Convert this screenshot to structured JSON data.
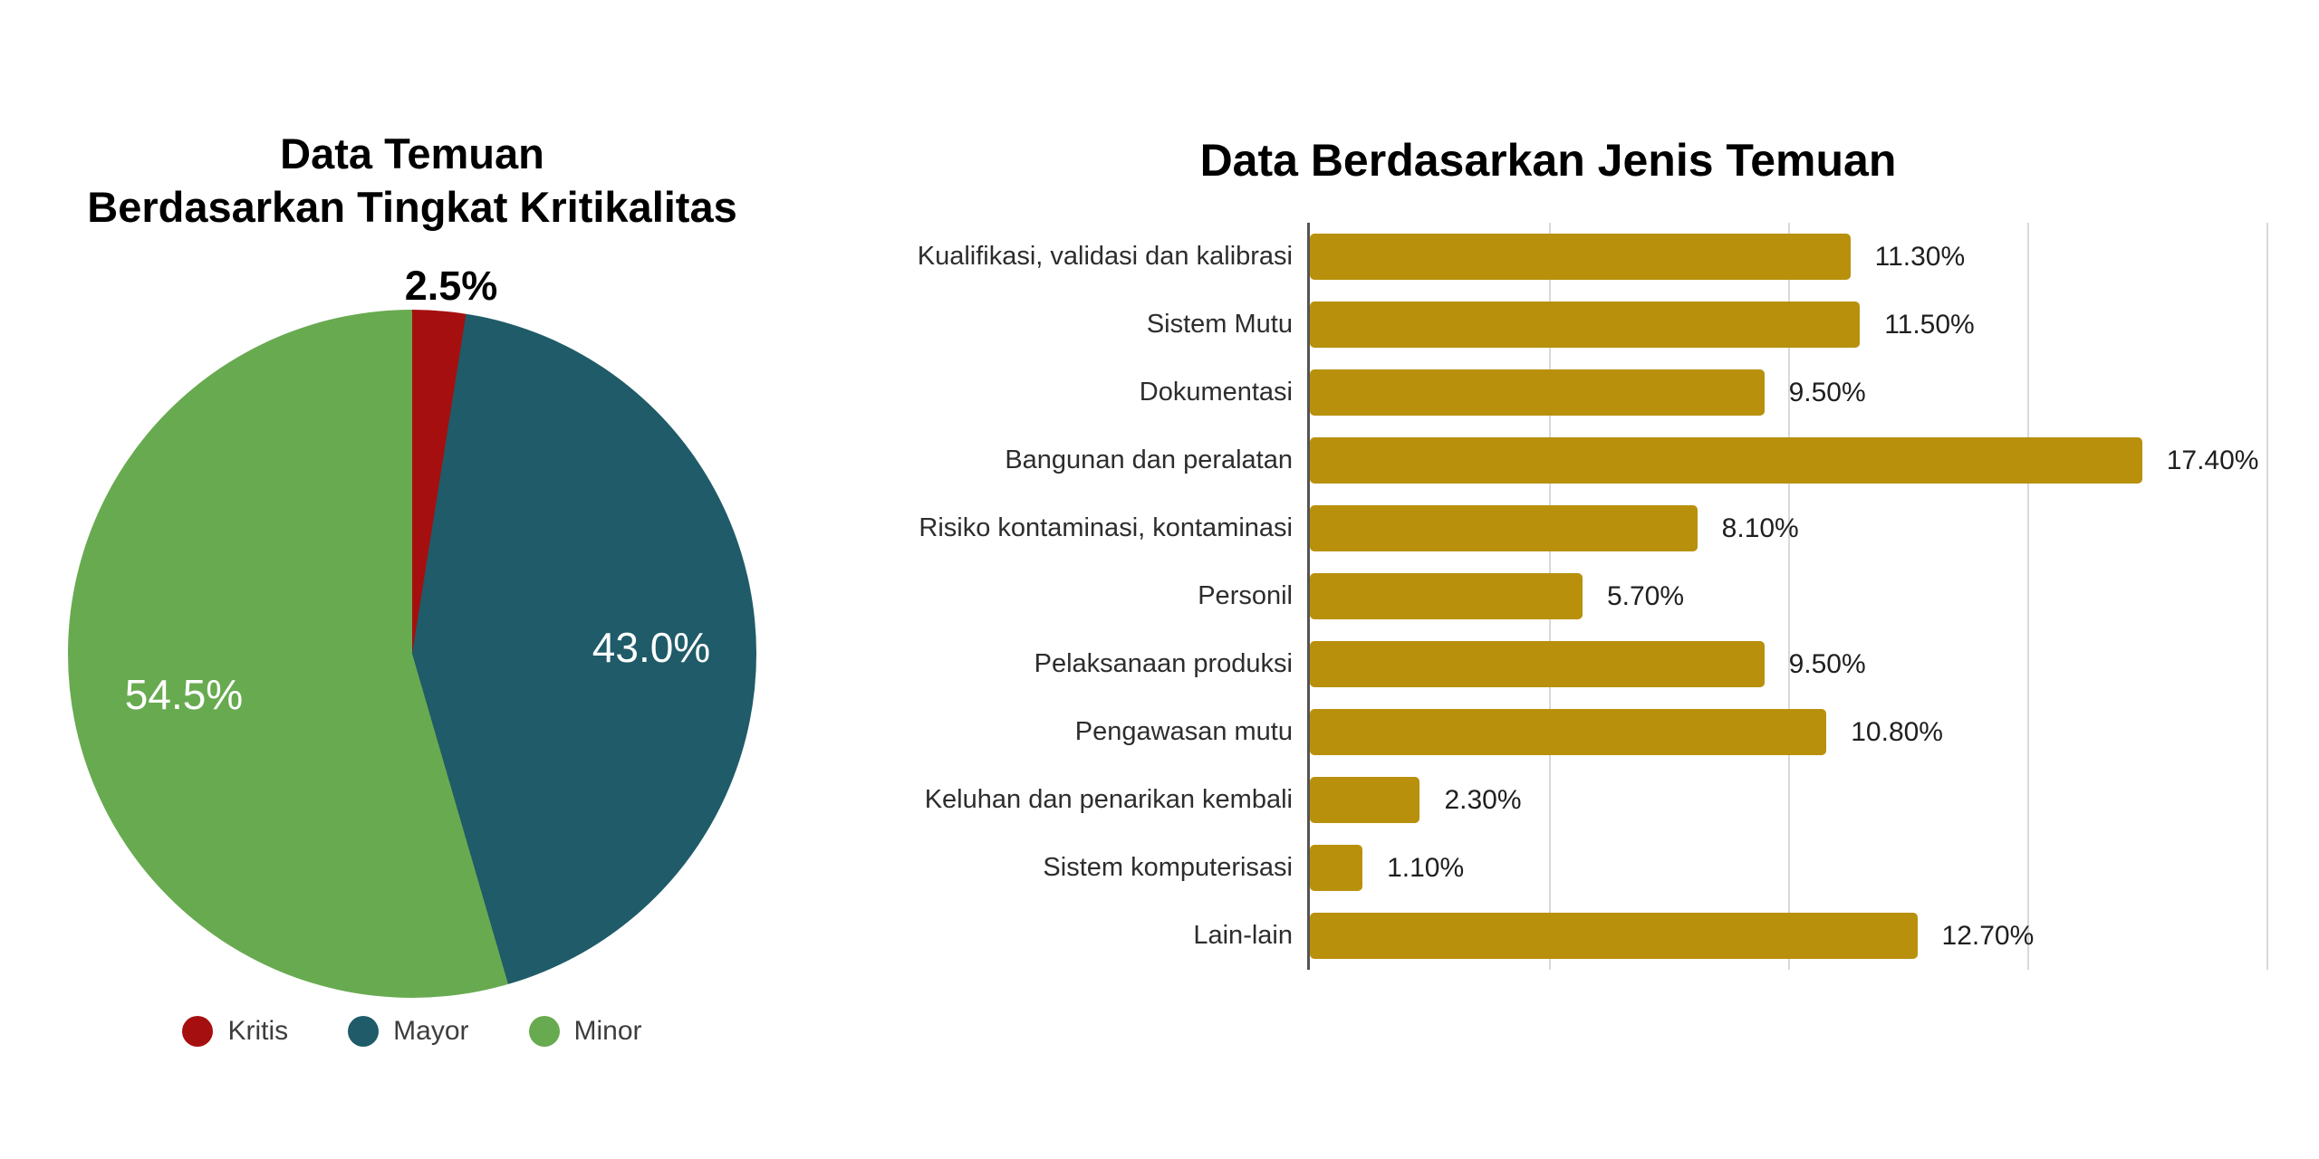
{
  "page": {
    "background_color": "#ffffff"
  },
  "chart_data": [
    {
      "type": "pie",
      "title_line1": "Data Temuan",
      "title_line2": "Berdasarkan Tingkat Kritikalitas",
      "legend_position": "bottom",
      "slices": [
        {
          "label": "Kritis",
          "value": 2.5,
          "display": "2.5%",
          "color": "#a60f0f",
          "label_placement": "outside-top",
          "label_color": "#000000"
        },
        {
          "label": "Mayor",
          "value": 43.0,
          "display": "43.0%",
          "color": "#1f5b68",
          "label_placement": "inside",
          "label_color": "#ffffff"
        },
        {
          "label": "Minor",
          "value": 54.5,
          "display": "54.5%",
          "color": "#68aa50",
          "label_placement": "inside",
          "label_color": "#ffffff"
        }
      ],
      "start_angle_deg": 0,
      "direction": "clockwise"
    },
    {
      "type": "bar",
      "orientation": "horizontal",
      "title": "Data Berdasarkan Jenis Temuan",
      "bar_color": "#b8900c",
      "axis": {
        "min": 0,
        "max": 20,
        "gridline_step": 5,
        "gridlines_visible": true,
        "tick_labels_visible": false
      },
      "xlabel": "",
      "ylabel": "",
      "bars": [
        {
          "category": "Kualifikasi, validasi dan kalibrasi",
          "value": 11.3,
          "display": "11.30%"
        },
        {
          "category": "Sistem Mutu",
          "value": 11.5,
          "display": "11.50%"
        },
        {
          "category": "Dokumentasi",
          "value": 9.5,
          "display": "9.50%"
        },
        {
          "category": "Bangunan dan peralatan",
          "value": 17.4,
          "display": "17.40%"
        },
        {
          "category": "Risiko kontaminasi, kontaminasi",
          "value": 8.1,
          "display": "8.10%"
        },
        {
          "category": "Personil",
          "value": 5.7,
          "display": "5.70%"
        },
        {
          "category": "Pelaksanaan produksi",
          "value": 9.5,
          "display": "9.50%"
        },
        {
          "category": "Pengawasan mutu",
          "value": 10.8,
          "display": "10.80%"
        },
        {
          "category": "Keluhan dan penarikan kembali",
          "value": 2.3,
          "display": "2.30%"
        },
        {
          "category": "Sistem komputerisasi",
          "value": 1.1,
          "display": "1.10%"
        },
        {
          "category": "Lain-lain",
          "value": 12.7,
          "display": "12.70%"
        }
      ]
    }
  ]
}
